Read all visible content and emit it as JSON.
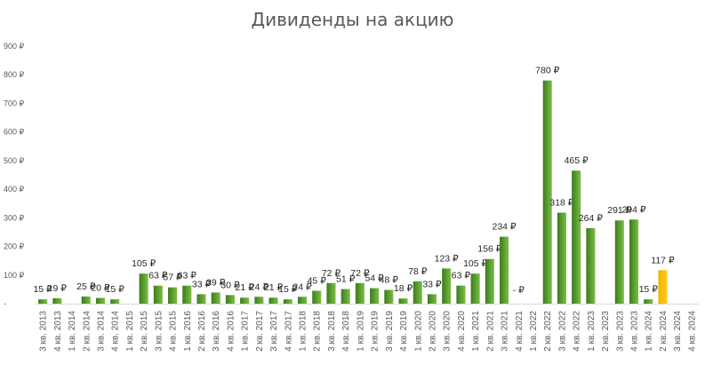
{
  "chart_data": {
    "type": "bar",
    "title": "Дивиденды на акцию",
    "xlabel": "",
    "ylabel": "",
    "ylim": [
      0,
      900
    ],
    "y_ticks": [
      "-",
      "100 ₽",
      "200 ₽",
      "300 ₽",
      "400 ₽",
      "500 ₽",
      "600 ₽",
      "700 ₽",
      "800 ₽",
      "900 ₽"
    ],
    "grid": false,
    "legend": "none",
    "colors": {
      "normal": "#4f8f2a",
      "highlight": "#ffc000"
    },
    "categories": [
      "3 кв. 2013",
      "4 кв. 2013",
      "1 кв. 2014",
      "2 кв. 2014",
      "3 кв. 2014",
      "4 кв. 2014",
      "1 кв. 2015",
      "2 кв. 2015",
      "3 кв. 2015",
      "4 кв. 2015",
      "1 кв. 2016",
      "2 кв. 2016",
      "3 кв. 2016",
      "4 кв. 2016",
      "1 кв. 2017",
      "2 кв. 2017",
      "3 кв. 2017",
      "4 кв. 2017",
      "1 кв. 2018",
      "2 кв. 2018",
      "3 кв. 2018",
      "4 кв. 2018",
      "1 кв. 2019",
      "2 кв. 2019",
      "3 кв. 2019",
      "4 кв. 2019",
      "1 кв. 2020",
      "2 кв. 2020",
      "3 кв. 2020",
      "4 кв. 2020",
      "1 кв. 2021",
      "2 кв. 2021",
      "3 кв. 2021",
      "4 кв. 2021",
      "1 кв. 2022",
      "2 кв. 2022",
      "3 кв. 2022",
      "4 кв. 2022",
      "1 кв. 2023",
      "2 кв. 2023",
      "3 кв. 2023",
      "4 кв. 2023",
      "1 кв. 2024",
      "2 кв. 2024",
      "3 кв. 2024",
      "4 кв. 2024"
    ],
    "values": [
      15,
      19,
      null,
      25,
      20,
      15,
      null,
      105,
      63,
      57,
      63,
      33,
      39,
      30,
      21,
      24,
      21,
      15,
      24,
      45,
      72,
      51,
      72,
      54,
      48,
      18,
      78,
      33,
      123,
      63,
      105,
      156,
      234,
      0,
      null,
      780,
      318,
      465,
      264,
      null,
      291,
      294,
      15,
      117,
      null,
      null
    ],
    "labels": [
      "15 ₽",
      "19 ₽",
      "",
      "25 ₽",
      "20 ₽",
      "15 ₽",
      "",
      "105 ₽",
      "63 ₽",
      "57 ₽",
      "63 ₽",
      "33 ₽",
      "39 ₽",
      "30 ₽",
      "21 ₽",
      "24 ₽",
      "21 ₽",
      "15 ₽",
      "24 ₽",
      "45 ₽",
      "72 ₽",
      "51 ₽",
      "72 ₽",
      "54 ₽",
      "48 ₽",
      "18 ₽",
      "78 ₽",
      "33 ₽",
      "123 ₽",
      "63 ₽",
      "105 ₽",
      "156 ₽",
      "234 ₽",
      "-   ₽",
      "",
      "780 ₽",
      "318 ₽",
      "465 ₽",
      "264 ₽",
      "",
      "291 ₽",
      "294 ₽",
      "15 ₽",
      "117 ₽",
      "",
      ""
    ],
    "highlight_index": 43
  }
}
